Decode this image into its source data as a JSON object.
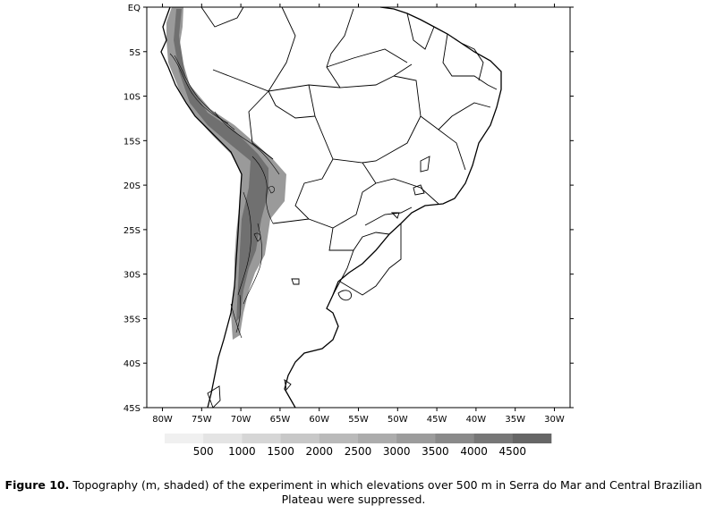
{
  "map": {
    "lat_ticks": [
      "EQ",
      "5S",
      "10S",
      "15S",
      "20S",
      "25S",
      "30S",
      "35S",
      "40S",
      "45S"
    ],
    "lon_ticks": [
      "80W",
      "75W",
      "70W",
      "65W",
      "60W",
      "55W",
      "50W",
      "45W",
      "40W",
      "35W",
      "30W"
    ],
    "frame": {
      "lon_min": -82,
      "lon_max": -28,
      "lat_min": -45,
      "lat_max": 0
    },
    "colors": {
      "coast": "#000000",
      "border": "#000000",
      "contour": "#000000"
    }
  },
  "legend": {
    "unit": "m",
    "levels": [
      "500",
      "1000",
      "1500",
      "2000",
      "2500",
      "3000",
      "3500",
      "4000",
      "4500"
    ],
    "colors": [
      "#f0f0f0",
      "#e4e4e4",
      "#d6d6d6",
      "#c8c8c8",
      "#bababa",
      "#acacac",
      "#9c9c9c",
      "#8a8a8a",
      "#777777",
      "#666666"
    ]
  },
  "caption": {
    "label": "Figure 10.",
    "text": " Topography (m, shaded) of the experiment in which elevations over 500 m in Serra do Mar and Central Brazilian Plateau were suppressed."
  }
}
